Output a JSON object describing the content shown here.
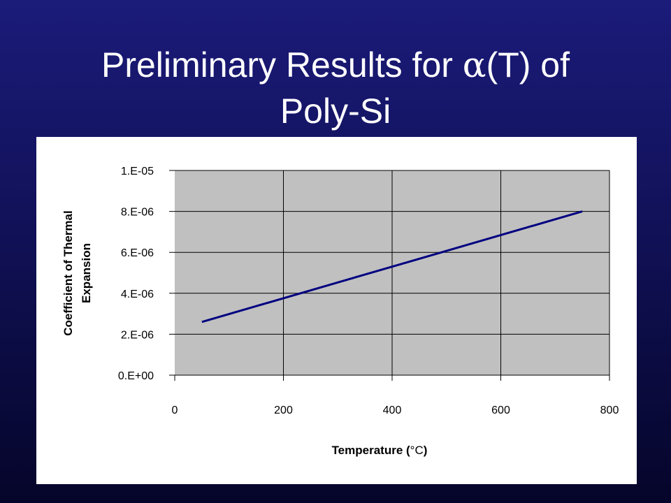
{
  "slide": {
    "title_line1_prefix": "Preliminary Results for ",
    "title_line1_symbol": "α",
    "title_line1_suffix": "(T) of",
    "title_line2": "Poly-Si"
  },
  "chart_data": {
    "type": "line",
    "xlabel_prefix": "Temperature (",
    "xlabel_unit": "°C",
    "xlabel_suffix": ")",
    "ylabel_line1": "Coefficient of Thermal",
    "ylabel_line2": "Expansion",
    "xlim": [
      0,
      800
    ],
    "ylim": [
      0,
      1e-05
    ],
    "x_ticks": [
      0,
      200,
      400,
      600,
      800
    ],
    "x_tick_labels": [
      "0",
      "200",
      "400",
      "600",
      "800"
    ],
    "y_ticks": [
      0,
      2e-06,
      4e-06,
      6e-06,
      8e-06,
      1e-05
    ],
    "y_tick_labels": [
      "0.E+00",
      "2.E-06",
      "4.E-06",
      "6.E-06",
      "8.E-06",
      "1.E-05"
    ],
    "grid": true,
    "legend": "none",
    "series": [
      {
        "x": [
          50,
          750
        ],
        "y": [
          2.6e-06,
          8e-06
        ],
        "color": "#000080"
      }
    ],
    "plot_background": "#c0c0c0"
  }
}
